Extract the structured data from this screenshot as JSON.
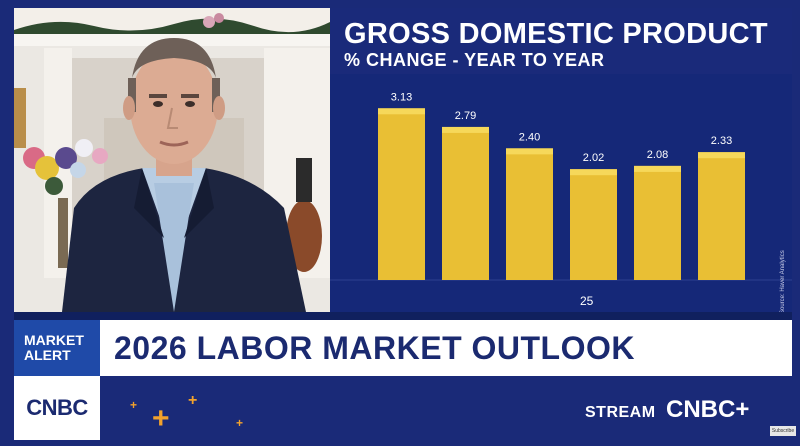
{
  "chart_data": {
    "type": "bar",
    "title": "GROSS DOMESTIC PRODUCT",
    "subtitle": "% CHANGE - YEAR TO YEAR",
    "categories": [
      "",
      "",
      "",
      "",
      "",
      ""
    ],
    "values": [
      3.13,
      2.79,
      2.4,
      2.02,
      2.08,
      2.33
    ],
    "value_labels": [
      "3.13",
      "2.79",
      "2.40",
      "2.02",
      "2.08",
      "2.33"
    ],
    "x_tick_label": "25",
    "ylim": [
      0,
      3.5
    ],
    "grid": false,
    "source": "Source: Haver Analytics",
    "colors": {
      "bar": "#e9bf34",
      "bar_cap": "#f6d85a",
      "background": "#152878"
    }
  },
  "lower_third": {
    "alert_badge": "MARKET ALERT",
    "headline": "2026 LABOR MARKET OUTLOOK",
    "network_logo": "CNBC",
    "stream_label": "STREAM",
    "stream_logo": "CNBC+",
    "corner_tag": "Subscribe"
  },
  "video": {
    "icon": "person-on-video-call-icon"
  }
}
